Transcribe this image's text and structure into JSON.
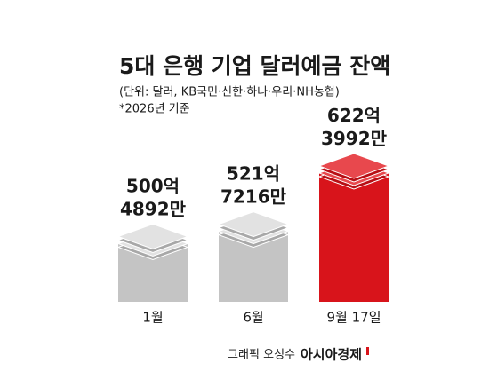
{
  "chart_data": {
    "type": "bar",
    "title": "5대 은행 기업 달러예금 잔액",
    "subtitle": "(단위: 달러, KB국민·신한·하나·우리·NH농협)",
    "note": "*2026년 기준",
    "categories": [
      "1월",
      "6월",
      "9월 17일"
    ],
    "values": [
      50048920000,
      52172160000,
      62239920000
    ],
    "value_labels": [
      "500억 4892만",
      "521억 7216만",
      "622억 3992만"
    ],
    "colors": [
      "#c4c4c4",
      "#c4c4c4",
      "#d8141b"
    ],
    "label_colors": [
      "#1a1a1a",
      "#1a1a1a",
      "#d8141b"
    ],
    "ylim": [
      40000000000,
      65000000000
    ],
    "credit": "그래픽 오성수",
    "brand": "아시아경제"
  }
}
